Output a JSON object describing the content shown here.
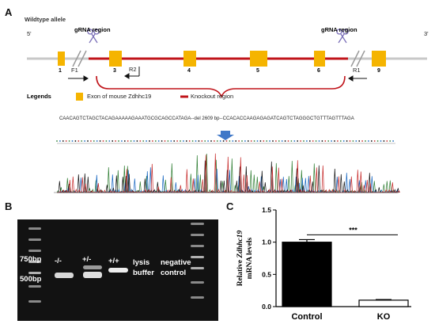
{
  "panel_a": {
    "letter": "A",
    "allele_label": "Wildtype allele",
    "five_prime": "5'",
    "three_prime": "3'",
    "grna_left": "gRNA region",
    "grna_right": "gRNA region",
    "exons": [
      "1",
      "3",
      "4",
      "5",
      "6",
      "9"
    ],
    "primers": {
      "f1": "F1",
      "r2": "R2",
      "r1": "R1"
    },
    "legend_title": "Legends",
    "legend_exon": "Exon of mouse Zdhhc19",
    "legend_knockout": "Knockout region",
    "sequence": "CAACAGTCTAGCTACAGAAAAAGAAATGCGCAGCCATAGA--del 2609 bp--CCACACCAAGAGAGATCAGTCTAGGGCTGTTTAGTTTAGA",
    "colors": {
      "exon": "#f5b400",
      "knockout": "#c0141a",
      "scissors": "#7a6fb8",
      "arrow": "#3f78c8"
    }
  },
  "panel_b": {
    "letter": "B",
    "marker_750": "750bp",
    "marker_500": "500bp",
    "lanes": [
      "-/-",
      "+/-",
      "+/+",
      "lysis\nbuffer",
      "negative\ncontrol"
    ]
  },
  "panel_c": {
    "letter": "C",
    "significance": "***"
  },
  "chart_data": {
    "type": "bar",
    "categories": [
      "Control",
      "KO"
    ],
    "values": [
      1.0,
      0.1
    ],
    "errors": [
      0.04,
      0.01
    ],
    "ylabel_italic": "Zdhhc19",
    "ylabel_prefix": "Relative ",
    "ylabel_line2": "mRNA levels",
    "yticks": [
      "0.0",
      "0.5",
      "1.0",
      "1.5"
    ],
    "ylim": [
      0,
      1.5
    ],
    "grid": false,
    "bar_colors": [
      "#000000",
      "#ffffff"
    ]
  }
}
